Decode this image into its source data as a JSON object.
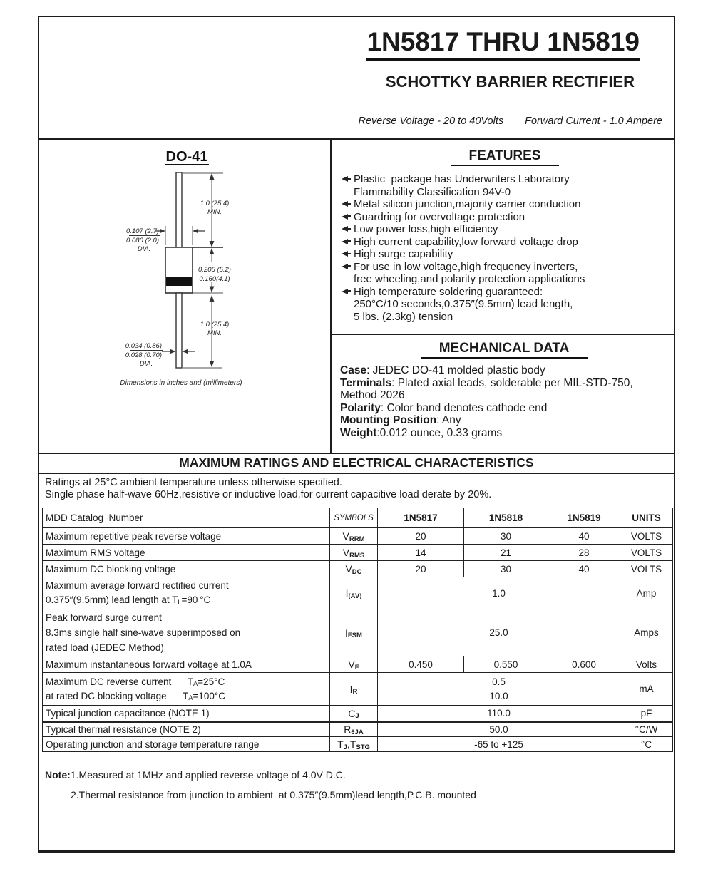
{
  "header": {
    "part_range": "1N5817 THRU 1N5819",
    "device_type": "SCHOTTKY BARRIER RECTIFIER",
    "reverse_voltage": "Reverse Voltage - 20 to 40Volts",
    "forward_current": "Forward Current - 1.0 Ampere"
  },
  "package": {
    "name": "DO-41",
    "caption": "Dimensions in inches and (millimeters)",
    "dims": {
      "lead_top_len": "1.0 (25.4)",
      "lead_top_min": "MIN.",
      "body_dia_max": "0.107 (2.7)",
      "body_dia_min": "0.080 (2.0)",
      "body_dia_label": "DIA.",
      "body_len_max": "0.205 (5.2)",
      "body_len_min": "0.160(4.1)",
      "lead_bot_len": "1.0 (25.4)",
      "lead_bot_min": "MIN.",
      "lead_dia_max": "0.034 (0.86)",
      "lead_dia_min": "0.028 (0.70)",
      "lead_dia_label": "DIA."
    }
  },
  "features": {
    "title": "FEATURES",
    "items": [
      {
        "lines": [
          "Plastic  package has Underwriters Laboratory",
          "Flammability Classification 94V-0"
        ]
      },
      {
        "lines": [
          "Metal silicon junction,majority carrier conduction"
        ]
      },
      {
        "lines": [
          "Guardring for overvoltage protection"
        ]
      },
      {
        "lines": [
          "Low power loss,high efficiency"
        ]
      },
      {
        "lines": [
          "High current capability,low forward voltage drop"
        ]
      },
      {
        "lines": [
          "High surge capability"
        ]
      },
      {
        "lines": [
          "For use in low voltage,high frequency inverters,",
          "free wheeling,and polarity protection applications"
        ]
      },
      {
        "lines": [
          "High temperature soldering guaranteed:",
          "250°C/10 seconds,0.375″(9.5mm) lead length,",
          "5 lbs. (2.3kg) tension"
        ]
      }
    ]
  },
  "mechanical": {
    "title": "MECHANICAL DATA",
    "items": [
      {
        "label": "Case",
        "text": ": JEDEC DO-41 molded plastic body"
      },
      {
        "label": "Terminals",
        "text": ": Plated axial leads, solderable per MIL-STD-750, Method 2026"
      },
      {
        "label": "Polarity",
        "text": ": Color band denotes cathode end"
      },
      {
        "label": "Mounting Position",
        "text": ": Any"
      },
      {
        "label": "Weight",
        "text": ":0.012 ounce, 0.33 grams"
      }
    ]
  },
  "ratings": {
    "title": "MAXIMUM RATINGS AND ELECTRICAL CHARACTERISTICS",
    "condition1": "Ratings at 25°C ambient temperature unless otherwise specified.",
    "condition2": "Single phase half-wave 60Hz,resistive or inductive load,for current capacitive load derate by 20%."
  },
  "table": {
    "headers": {
      "param": "MDD Catalog  Number",
      "symbols": "SYMBOLS",
      "d1": "1N5817",
      "d2": "1N5818",
      "d3": "1N5819",
      "units": "UNITS"
    },
    "rows": [
      {
        "label_lines": [
          "Maximum repetitive peak reverse voltage"
        ],
        "symbol": "V~RRM~",
        "values": [
          "20",
          "30",
          "40"
        ],
        "units": "VOLTS"
      },
      {
        "label_lines": [
          "Maximum RMS voltage"
        ],
        "symbol": "V~RMS~",
        "values": [
          "14",
          "21",
          "28"
        ],
        "units": "VOLTS"
      },
      {
        "label_lines": [
          "Maximum DC blocking voltage"
        ],
        "symbol": "V~DC~",
        "values": [
          "20",
          "30",
          "40"
        ],
        "units": "VOLTS"
      },
      {
        "label_lines": [
          "Maximum average forward rectified current",
          "0.375″(9.5mm) lead length at T~L~=90 °C"
        ],
        "symbol": "I~(AV)~",
        "span_value": "1.0",
        "units": "Amp"
      },
      {
        "label_lines": [
          "Peak forward surge current",
          "8.3ms single half sine-wave superimposed on",
          "rated load (JEDEC Method)"
        ],
        "symbol": "I~FSM~",
        "span_value": "25.0",
        "units": "Amps"
      },
      {
        "label_lines": [
          "Maximum instantaneous forward voltage at 1.0A"
        ],
        "symbol": "V~F~",
        "values": [
          "0.450",
          "0.550",
          "0.600"
        ],
        "units": "Volts"
      },
      {
        "label_lines": [
          "Maximum DC reverse current      T~A~=25°C",
          "at rated DC blocking voltage      T~A~=100°C"
        ],
        "symbol": "I~R~",
        "span_lines": [
          "0.5",
          "10.0"
        ],
        "units": "mA"
      },
      {
        "label_lines": [
          "Typical junction capacitance (NOTE 1)"
        ],
        "symbol": "C~J~",
        "span_value": "110.0",
        "units": "pF"
      },
      {
        "label_lines": [
          "Typical thermal resistance (NOTE 2)"
        ],
        "symbol": "R~θJA~",
        "span_value": "50.0",
        "units": "°C/W"
      },
      {
        "label_lines": [
          "Operating junction and storage temperature range"
        ],
        "symbol": "T~J~,T~STG~",
        "span_value": "-65 to +125",
        "units": "°C"
      }
    ]
  },
  "notes": {
    "label": "Note:",
    "note1": "1.Measured at 1MHz and applied reverse voltage of 4.0V D.C.",
    "note2": "2.Thermal resistance from junction to ambient  at 0.375″(9.5mm)lead length,P.C.B. mounted"
  }
}
